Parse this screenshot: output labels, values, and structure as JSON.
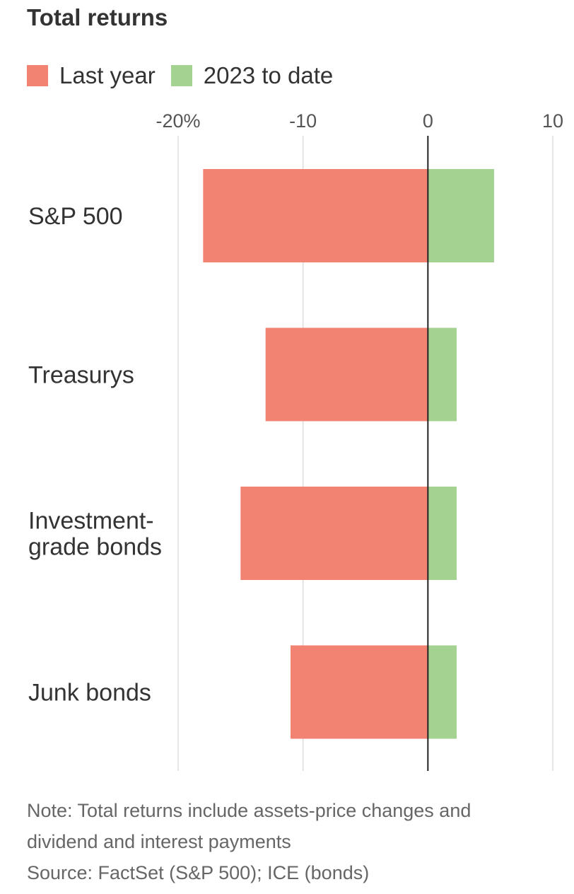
{
  "chart_data": {
    "type": "bar",
    "orientation": "horizontal",
    "title": "Total returns",
    "categories": [
      [
        "S&P 500"
      ],
      [
        "Treasurys"
      ],
      [
        "Investment-",
        "grade bonds"
      ],
      [
        "Junk bonds"
      ]
    ],
    "series": [
      {
        "name": "Last year",
        "color": "#f28272",
        "values": [
          -18,
          -13,
          -15,
          -11
        ]
      },
      {
        "name": "2023 to date",
        "color": "#a4d291",
        "values": [
          5.3,
          2.3,
          2.3,
          2.3
        ]
      }
    ],
    "xlim": [
      -20,
      10
    ],
    "ticks": [
      {
        "value": -20,
        "label": "-20%"
      },
      {
        "value": -10,
        "label": "-10"
      },
      {
        "value": 0,
        "label": "0"
      },
      {
        "value": 10,
        "label": "10"
      }
    ],
    "grid": true,
    "legend_position": "top-left",
    "note_lines": [
      "Note: Total returns include assets-price changes and",
      "dividend and interest payments"
    ],
    "source": "Source: FactSet (S&P 500); ICE (bonds)"
  }
}
